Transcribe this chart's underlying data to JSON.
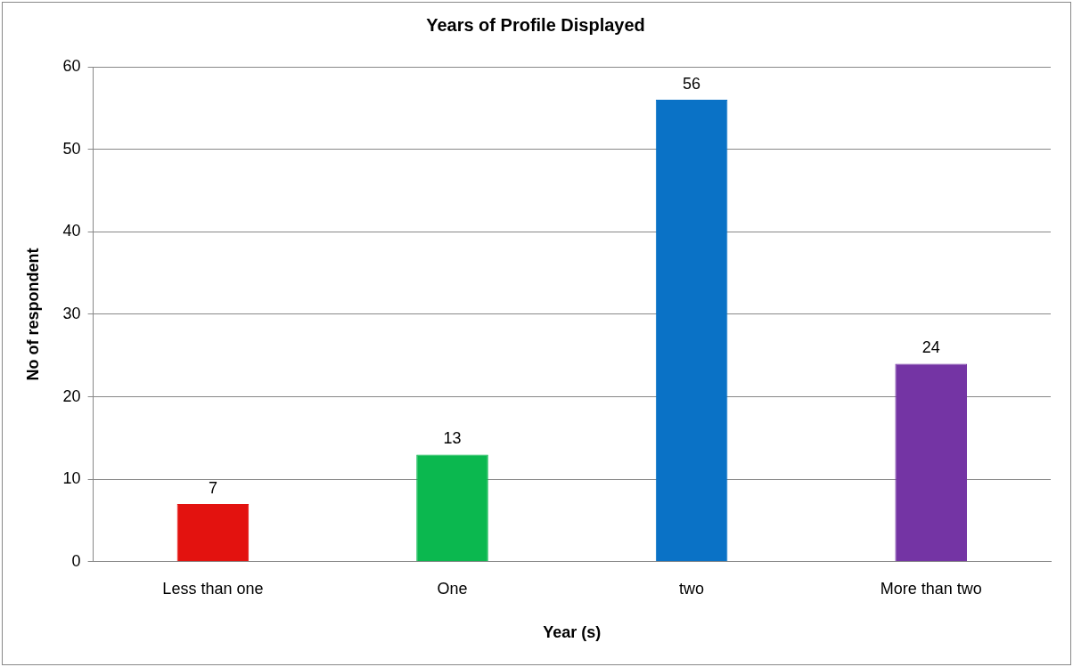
{
  "chart_data": {
    "type": "bar",
    "title": "Years of Profile Displayed",
    "xlabel": "Year (s)",
    "ylabel": "No of respondent",
    "categories": [
      "Less than one",
      "One",
      "two",
      "More than two"
    ],
    "values": [
      7,
      13,
      56,
      24
    ],
    "colors": [
      "#e3120f",
      "#0bb84f",
      "#0a72c6",
      "#7434a4"
    ],
    "ylim": [
      0,
      60
    ],
    "yticks": [
      0,
      10,
      20,
      30,
      40,
      50,
      60
    ],
    "grid": "y",
    "legend": false,
    "data_labels": true
  }
}
